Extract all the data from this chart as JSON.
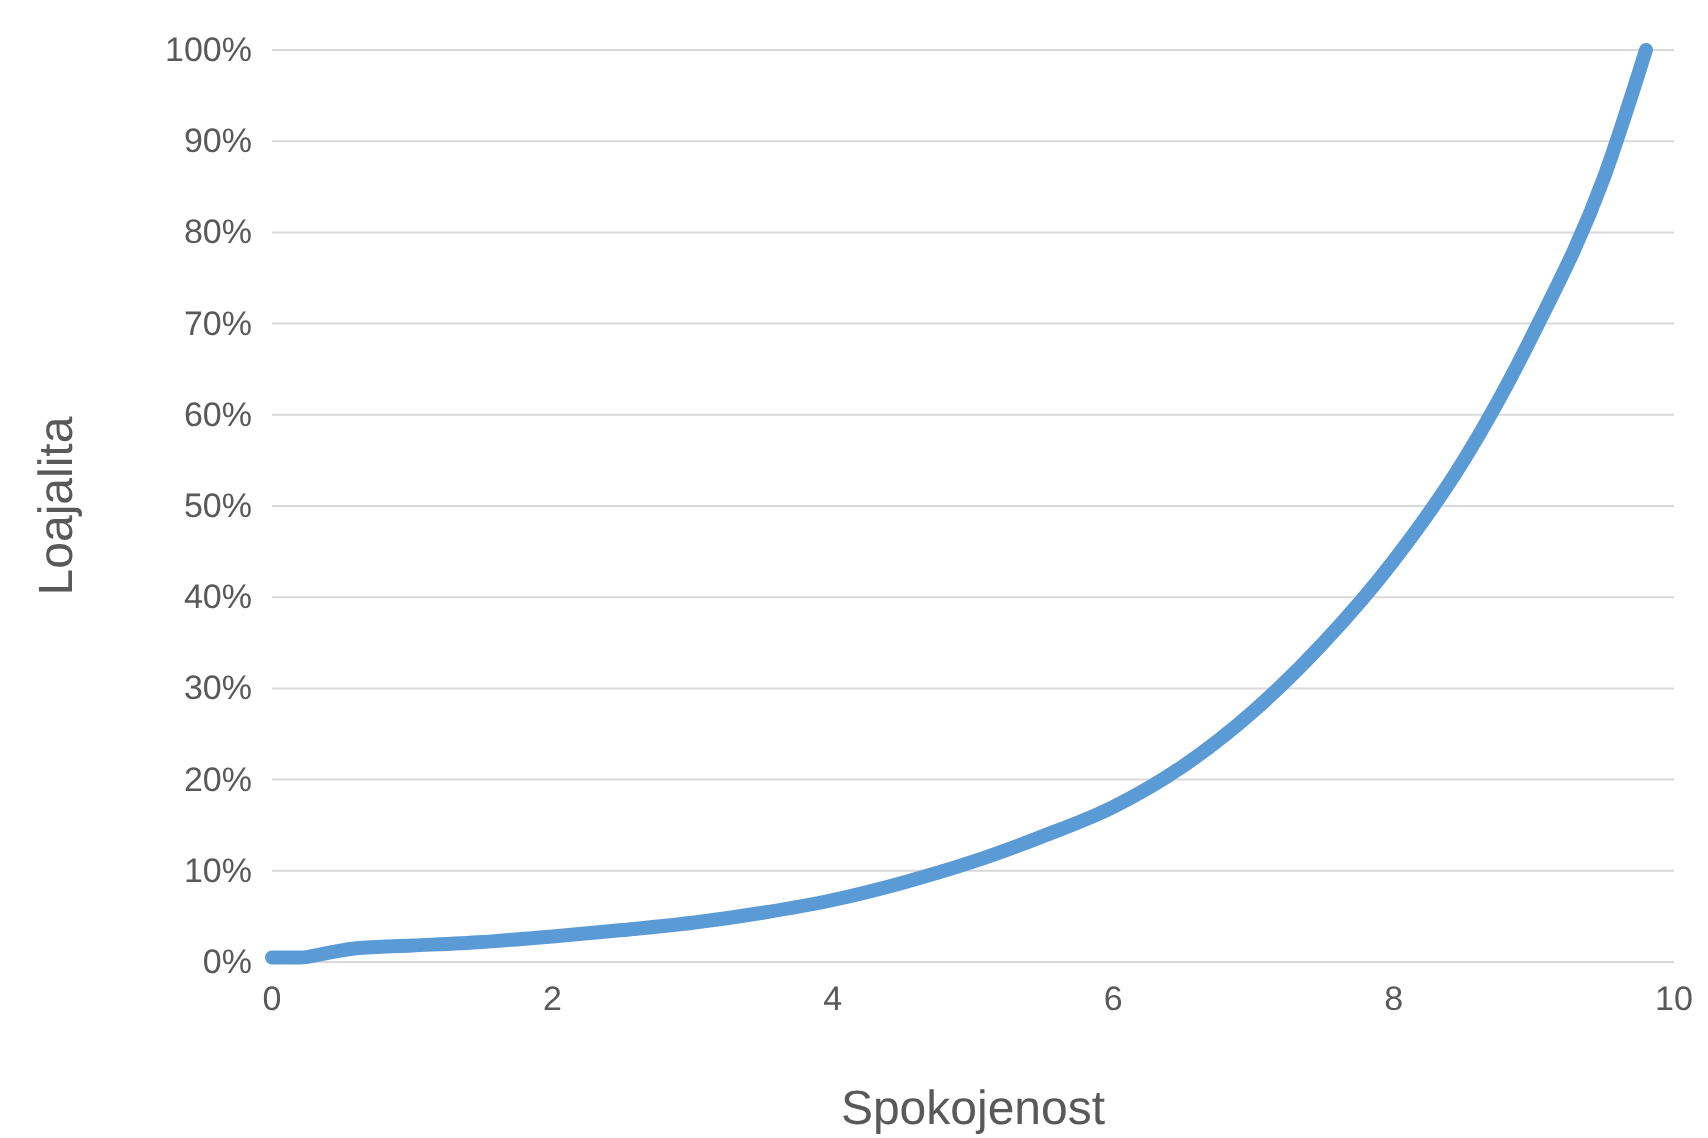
{
  "chart_data": {
    "type": "line",
    "xlabel": "Spokojenost",
    "ylabel": "Loajalita",
    "x": [
      0,
      0.2,
      0.4,
      0.6,
      1,
      1.5,
      2,
      2.5,
      3,
      3.5,
      4,
      4.5,
      5,
      5.5,
      6,
      6.5,
      7,
      7.5,
      8,
      8.5,
      9,
      9.5,
      9.8
    ],
    "series": [
      {
        "color": "#5b9bd5",
        "values": [
          0.5,
          0.5,
          1,
          1.5,
          1.8,
          2.2,
          2.8,
          3.5,
          4.3,
          5.4,
          6.8,
          8.7,
          11,
          13.8,
          17,
          21.5,
          27.5,
          35,
          44,
          55,
          69,
          86,
          100
        ]
      }
    ],
    "xlim": [
      0,
      10
    ],
    "xticks": [
      0,
      2,
      4,
      6,
      8,
      10
    ],
    "ylim": [
      0,
      100
    ],
    "yticks": [
      {
        "value": 0,
        "label": "0%"
      },
      {
        "value": 10,
        "label": "10%"
      },
      {
        "value": 20,
        "label": "20%"
      },
      {
        "value": 30,
        "label": "30%"
      },
      {
        "value": 40,
        "label": "40%"
      },
      {
        "value": 50,
        "label": "50%"
      },
      {
        "value": 60,
        "label": "60%"
      },
      {
        "value": 70,
        "label": "70%"
      },
      {
        "value": 80,
        "label": "80%"
      },
      {
        "value": 90,
        "label": "90%"
      },
      {
        "value": 100,
        "label": "100%"
      }
    ],
    "grid": "y",
    "marker": "none",
    "line_style": "solid"
  }
}
